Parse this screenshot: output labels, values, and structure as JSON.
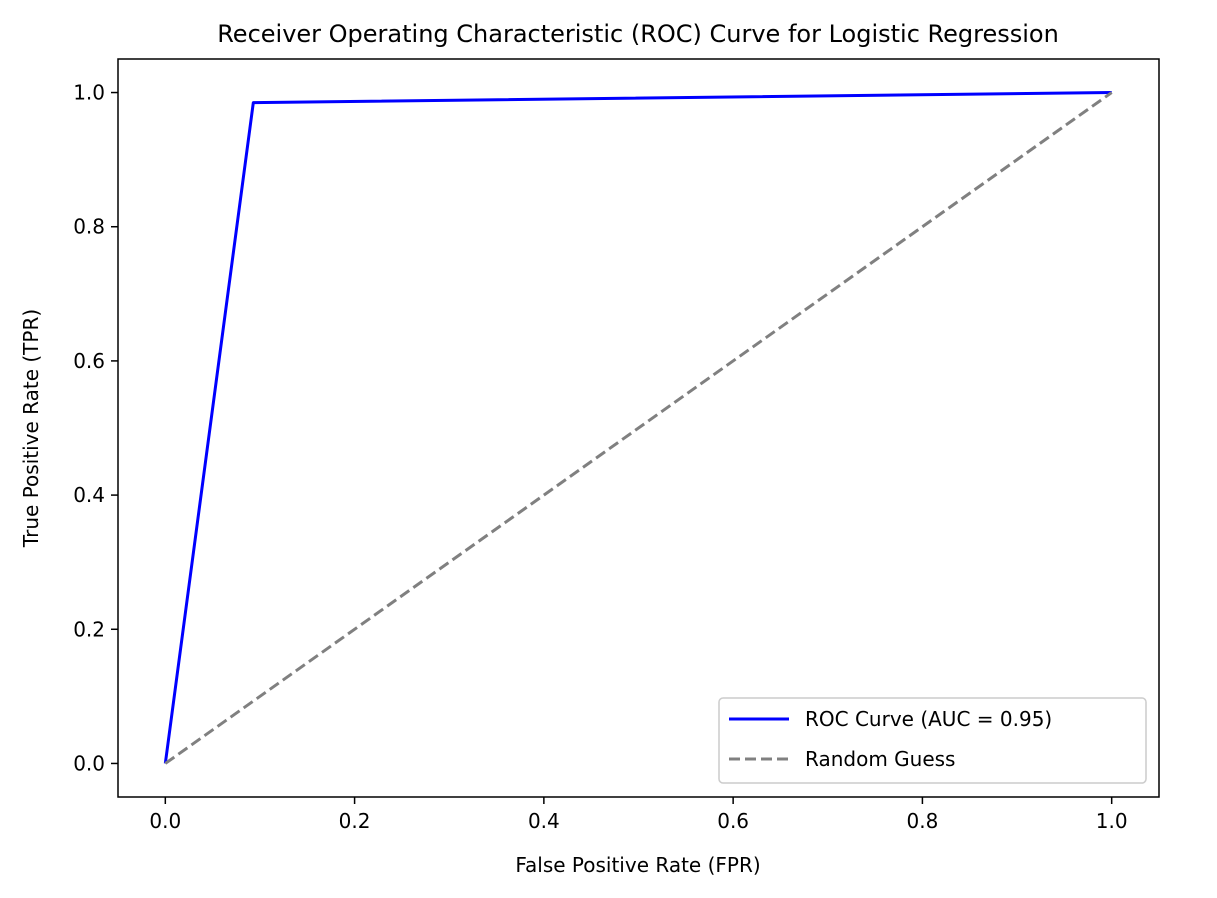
{
  "chart_data": {
    "type": "line",
    "title": "Receiver Operating Characteristic (ROC) Curve for Logistic Regression",
    "xlabel": "False Positive Rate (FPR)",
    "ylabel": "True Positive Rate (TPR)",
    "xlim": [
      -0.05,
      1.05
    ],
    "ylim": [
      -0.05,
      1.05
    ],
    "xticks": [
      "0.0",
      "0.2",
      "0.4",
      "0.6",
      "0.8",
      "1.0"
    ],
    "yticks": [
      "0.0",
      "0.2",
      "0.4",
      "0.6",
      "0.8",
      "1.0"
    ],
    "grid": false,
    "legend_position": "lower-right",
    "series": [
      {
        "name": "ROC Curve (AUC = 0.95)",
        "color": "#0000ff",
        "style": "solid",
        "x": [
          0.0,
          0.093,
          1.0
        ],
        "y": [
          0.0,
          0.985,
          1.0
        ]
      },
      {
        "name": "Random Guess",
        "color": "#808080",
        "style": "dashed",
        "x": [
          0.0,
          1.0
        ],
        "y": [
          0.0,
          1.0
        ]
      }
    ]
  }
}
